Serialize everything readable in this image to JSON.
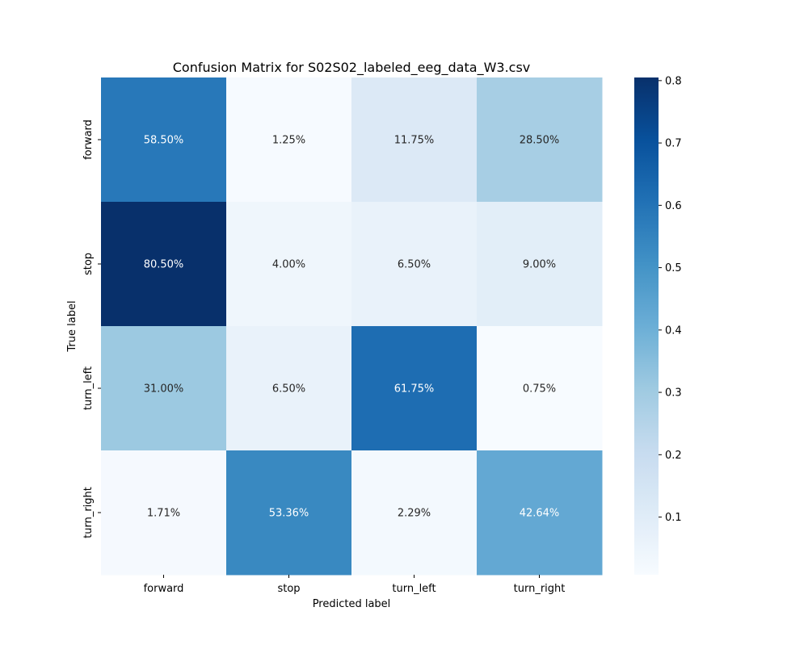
{
  "chart_data": {
    "type": "heatmap",
    "title": "Confusion Matrix for S02S02_labeled_eeg_data_W3.csv",
    "xlabel": "Predicted label",
    "ylabel": "True label",
    "x_categories": [
      "forward",
      "stop",
      "turn_left",
      "turn_right"
    ],
    "y_categories": [
      "forward",
      "stop",
      "turn_left",
      "turn_right"
    ],
    "values": [
      [
        0.585,
        0.0125,
        0.1175,
        0.285
      ],
      [
        0.805,
        0.04,
        0.065,
        0.09
      ],
      [
        0.31,
        0.065,
        0.6175,
        0.0075
      ],
      [
        0.0171,
        0.5336,
        0.0229,
        0.4264
      ]
    ],
    "annotations": [
      [
        "58.50%",
        "1.25%",
        "11.75%",
        "28.50%"
      ],
      [
        "80.50%",
        "4.00%",
        "6.50%",
        "9.00%"
      ],
      [
        "31.00%",
        "6.50%",
        "61.75%",
        "0.75%"
      ],
      [
        "1.71%",
        "53.36%",
        "2.29%",
        "42.64%"
      ]
    ],
    "colormap": "Blues",
    "colormap_stops": [
      "#f7fbff",
      "#deebf7",
      "#c6dbef",
      "#9ecae1",
      "#6baed6",
      "#4292c6",
      "#2171b5",
      "#08519c",
      "#08306b"
    ],
    "colorbar": {
      "range": [
        0.0075,
        0.805
      ],
      "ticks": [
        "0.1",
        "0.2",
        "0.3",
        "0.4",
        "0.5",
        "0.6",
        "0.7",
        "0.8"
      ]
    },
    "grid": false
  }
}
